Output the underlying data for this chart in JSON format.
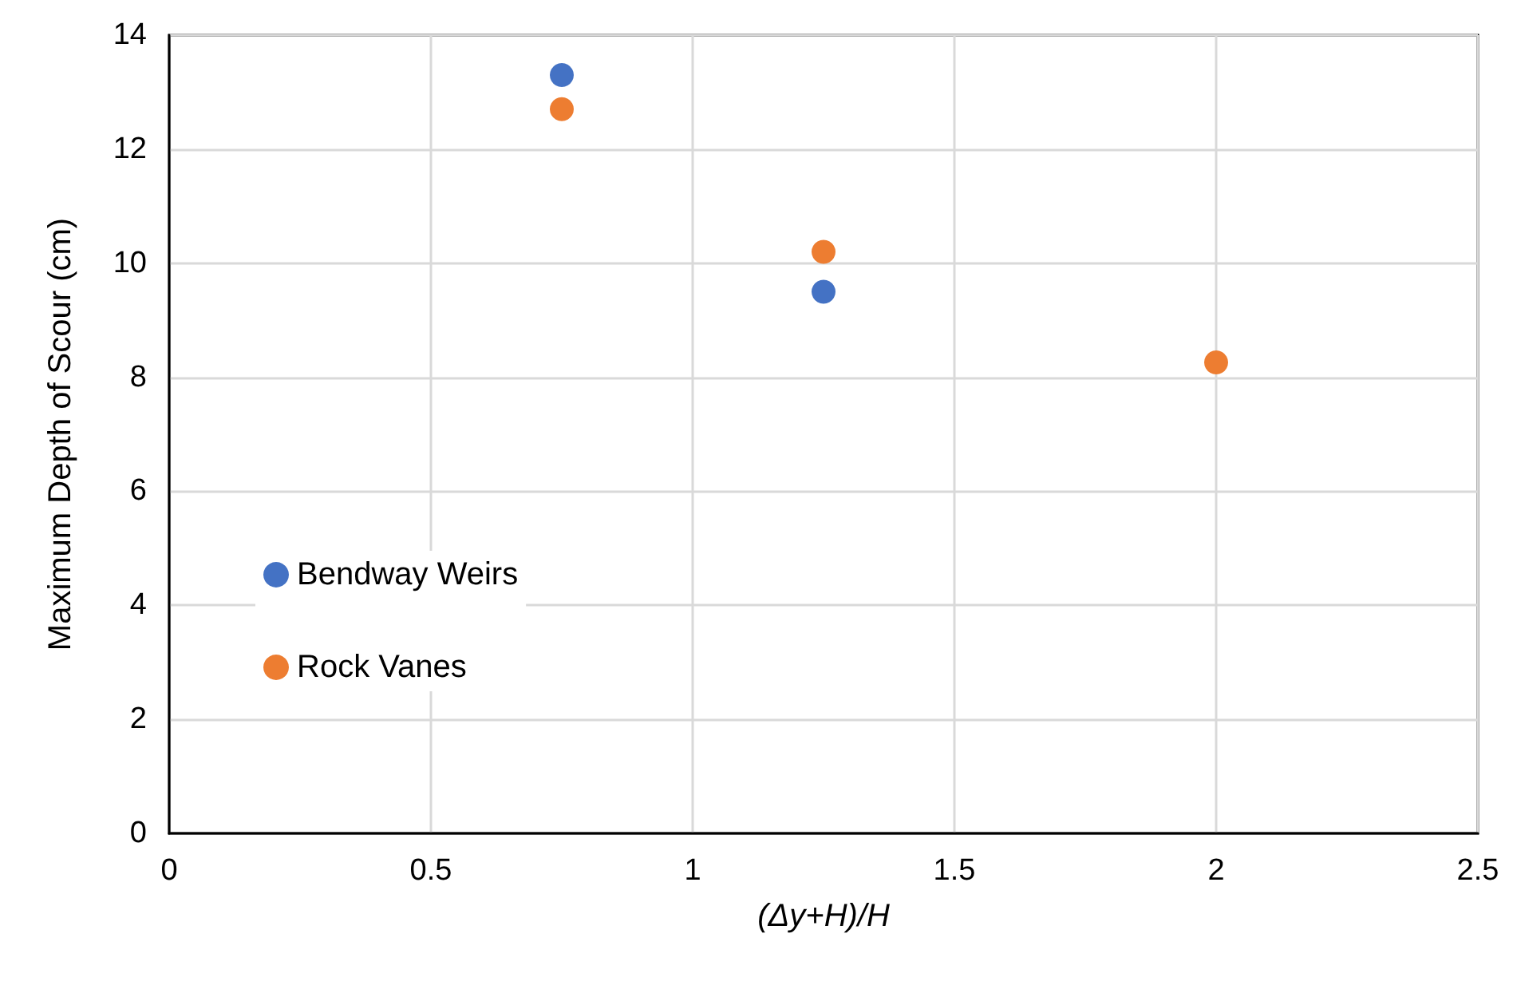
{
  "chart_data": {
    "type": "scatter",
    "xlabel": "(Δy+H)/H",
    "ylabel": "Maximum Depth of Scour (cm)",
    "x": [
      0.75,
      1.25,
      2
    ],
    "series": [
      {
        "name": "Bendway Weirs",
        "color": "#4472c4",
        "values": [
          13.3,
          9.5,
          null
        ]
      },
      {
        "name": "Rock Vanes",
        "color": "#ed7d31",
        "values": [
          12.7,
          10.2,
          8.26
        ]
      }
    ],
    "xlim": [
      0,
      2.5
    ],
    "xticks": [
      0,
      0.5,
      1,
      1.5,
      2,
      2.5
    ],
    "ylim": [
      0,
      14
    ],
    "yticks": [
      0,
      2,
      4,
      6,
      8,
      10,
      12,
      14
    ],
    "grid": true,
    "legend": "left",
    "marker": "circle"
  }
}
